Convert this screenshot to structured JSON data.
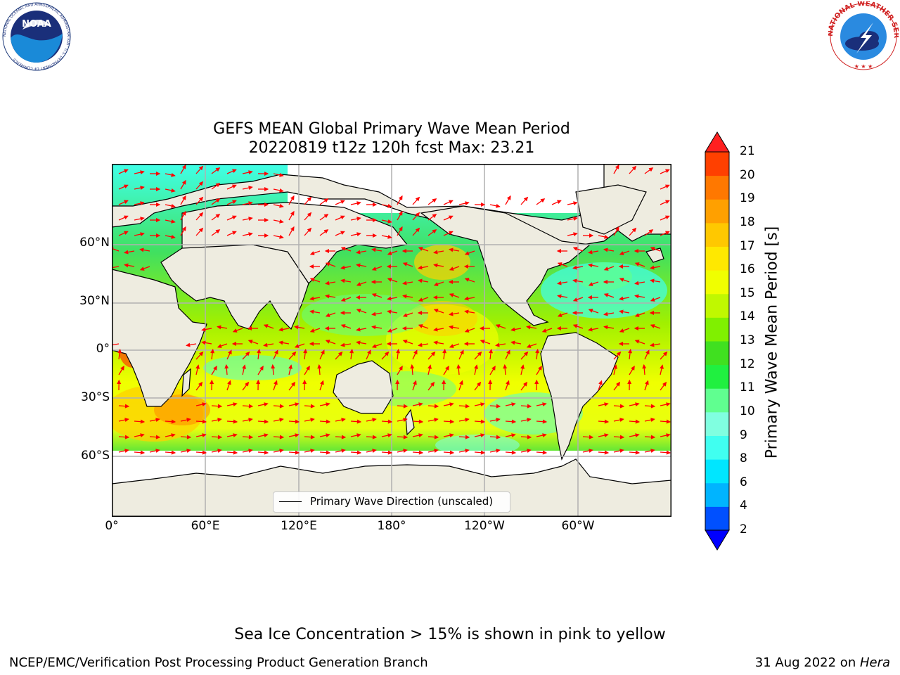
{
  "title_line1": "GEFS MEAN Global Primary Wave Mean Period",
  "title_line2": "20220819 t12z 120h fcst   Max: 23.21",
  "lat_ticks": [
    "60°N",
    "30°N",
    "0°",
    "30°S",
    "60°S"
  ],
  "lon_ticks": [
    "0°",
    "60°E",
    "120°E",
    "180°",
    "120°W",
    "60°W"
  ],
  "legend_label": "Primary Wave Direction (unscaled)",
  "colorbar": {
    "label": "Primary Wave Mean Period [s]",
    "ticks": [
      "2",
      "4",
      "6",
      "8",
      "9",
      "10",
      "11",
      "12",
      "13",
      "14",
      "15",
      "16",
      "17",
      "18",
      "19",
      "20",
      "21"
    ],
    "colors": [
      "#0050ff",
      "#00b4ff",
      "#00e6ff",
      "#40fff0",
      "#80ffe0",
      "#60ff90",
      "#20f040",
      "#40e020",
      "#80f000",
      "#c0f800",
      "#f0ff00",
      "#ffe800",
      "#ffc800",
      "#ffa000",
      "#ff7800",
      "#ff4000"
    ],
    "under_color": "#0000ff",
    "over_color": "#ff2020"
  },
  "caption": "Sea Ice Concentration > 15% is shown in pink to yellow",
  "footer_left": "NCEP/EMC/Verification Post Processing Product Generation Branch",
  "footer_date": "31 Aug 2022 on ",
  "footer_machine": "Hera",
  "logo_noaa_text": "NOAA",
  "logo_noaa_ring": "NATIONAL OCEANIC AND ATMOSPHERIC ADMINISTRATION · U.S. DEPARTMENT OF COMMERCE",
  "logo_nws_ring": "NATIONAL WEATHER SERVICE",
  "colors": {
    "land": "#eeece0",
    "arrow": "#ff0000",
    "grid": "#b0b0b0"
  },
  "icons": [
    "noaa-logo",
    "nws-logo"
  ]
}
